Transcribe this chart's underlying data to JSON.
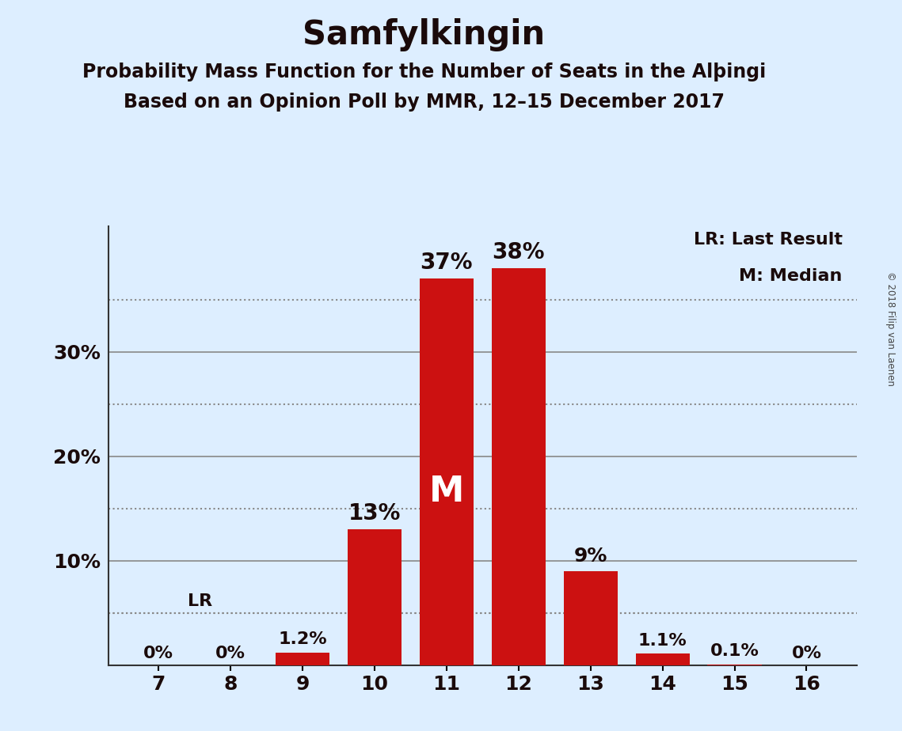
{
  "title": "Samfylkingin",
  "subtitle1": "Probability Mass Function for the Number of Seats in the Alþingi",
  "subtitle2": "Based on an Opinion Poll by MMR, 12–15 December 2017",
  "copyright": "© 2018 Filip van Laenen",
  "categories": [
    7,
    8,
    9,
    10,
    11,
    12,
    13,
    14,
    15,
    16
  ],
  "values": [
    0.0,
    0.0,
    1.2,
    13.0,
    37.0,
    38.0,
    9.0,
    1.1,
    0.1,
    0.0
  ],
  "labels": [
    "0%",
    "0%",
    "1.2%",
    "13%",
    "37%",
    "38%",
    "9%",
    "1.1%",
    "0.1%",
    "0%"
  ],
  "bar_color": "#cc1111",
  "background_color": "#ddeeff",
  "median_seat": 11,
  "lr_level": 5.0,
  "lr_label": "LR",
  "median_label": "M",
  "legend_lr": "LR: Last Result",
  "legend_m": "M: Median",
  "ylim": [
    0,
    42
  ],
  "solid_grid": [
    10,
    20,
    30
  ],
  "dotted_grid": [
    5,
    15,
    25,
    35
  ],
  "grid_color": "#888888",
  "text_color": "#1a0a0a",
  "title_fontsize": 30,
  "subtitle_fontsize": 17,
  "label_fontsize": 16,
  "tick_fontsize": 18,
  "legend_fontsize": 16,
  "bar_width": 0.75
}
